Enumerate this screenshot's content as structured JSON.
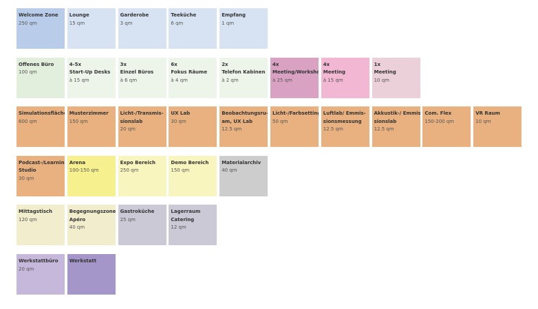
{
  "rows": [
    {
      "tiles": [
        {
          "title": [
            "Welcome Zone"
          ],
          "info": [
            "250 qm"
          ],
          "color": "#b9cdea"
        },
        {
          "title": [
            "Lounge"
          ],
          "info": [
            "15 qm"
          ],
          "color": "#d7e3f3"
        },
        {
          "title": [
            "Garderobe"
          ],
          "info": [
            "3 qm"
          ],
          "color": "#d7e3f3"
        },
        {
          "title": [
            "Teeküche"
          ],
          "info": [
            "6 qm"
          ],
          "color": "#d7e3f3"
        },
        {
          "title": [
            "Empfang"
          ],
          "info": [
            "1 qm"
          ],
          "color": "#d7e3f3"
        }
      ]
    },
    {
      "tiles": [
        {
          "title": [
            "Offenes Büro"
          ],
          "info": [
            "100 qm"
          ],
          "color": "#e2efdc"
        },
        {
          "title": [
            "4-5x",
            "Start-Up Desks"
          ],
          "info": [
            "à 15 qm"
          ],
          "color": "#edf5ea"
        },
        {
          "title": [
            "3x",
            "Einzel Büros"
          ],
          "info": [
            "à 6 qm"
          ],
          "color": "#edf5ea"
        },
        {
          "title": [
            "6x",
            "Fokus Räume"
          ],
          "info": [
            "à 4 qm"
          ],
          "color": "#edf5ea"
        },
        {
          "title": [
            "2x",
            "Telefon Kabinen"
          ],
          "info": [
            "à 2 qm"
          ],
          "color": "#edf5ea"
        },
        {
          "title": [
            "4x",
            "Meeting/Workshop"
          ],
          "info": [
            "à 25 qm"
          ],
          "color": "#d9a2c2"
        },
        {
          "title": [
            "4x",
            "Meeting"
          ],
          "info": [
            "à 15 qm"
          ],
          "color": "#f2b8d3"
        },
        {
          "title": [
            "1x",
            "Meeting"
          ],
          "info": [
            "10 qm"
          ],
          "color": "#ebd0da"
        }
      ]
    },
    {
      "tiles": [
        {
          "title": [
            "Simulationsfläche"
          ],
          "info": [
            "600 qm"
          ],
          "color": "#e8b17f"
        },
        {
          "title": [
            "Musterzimmer"
          ],
          "info": [
            "150 qm"
          ],
          "color": "#e8b17f"
        },
        {
          "title": [
            "Licht-/Transmis-",
            "sionslab"
          ],
          "info": [
            "20 qm"
          ],
          "color": "#e8b17f"
        },
        {
          "title": [
            "UX Lab"
          ],
          "info": [
            "30 qm"
          ],
          "color": "#e8b17f"
        },
        {
          "title": [
            "Beobachtungsru-",
            "am, UX Lab"
          ],
          "info": [
            "12.5 qm"
          ],
          "color": "#e8b17f"
        },
        {
          "title": [
            "Licht-/Farbsetting"
          ],
          "info": [
            "50 qm"
          ],
          "color": "#e8b17f"
        },
        {
          "title": [
            "Luftlab/ Emmis-",
            "sionsmessung"
          ],
          "info": [
            "12.5 qm"
          ],
          "color": "#e8b17f"
        },
        {
          "title": [
            "Akkustik-/ Emmis-",
            "sionslab"
          ],
          "info": [
            "12.5 qm"
          ],
          "color": "#e8b17f"
        },
        {
          "title": [
            "Com. Flex"
          ],
          "info": [
            "150-200 qm"
          ],
          "color": "#e8b17f"
        },
        {
          "title": [
            "VR Raum"
          ],
          "info": [
            "10 qm"
          ],
          "color": "#e8b17f"
        }
      ]
    },
    {
      "tiles": [
        {
          "title": [
            "Podcast-/Learning",
            "Studio"
          ],
          "info": [
            "30 qm"
          ],
          "color": "#e8b17f"
        },
        {
          "title": [
            "Arena"
          ],
          "info": [
            "100-150 qm"
          ],
          "color": "#f7f08e"
        },
        {
          "title": [
            "Expo Bereich"
          ],
          "info": [
            "250 qm"
          ],
          "color": "#f8f5be"
        },
        {
          "title": [
            "Demo Bereich"
          ],
          "info": [
            "150 qm"
          ],
          "color": "#f8f5be"
        },
        {
          "title": [
            "Materialarchiv"
          ],
          "info": [
            "40 qm"
          ],
          "color": "#cdcdcd"
        }
      ]
    },
    {
      "tiles": [
        {
          "title": [
            "Mittagstisch"
          ],
          "info": [
            "120 qm"
          ],
          "color": "#f2edcd"
        },
        {
          "title": [
            "Begegnungszone/",
            "Apéro"
          ],
          "info": [
            "40 qm"
          ],
          "color": "#f2edcd"
        },
        {
          "title": [
            "Gastroküche"
          ],
          "info": [
            "25 qm"
          ],
          "color": "#ccc9d7"
        },
        {
          "title": [
            "Lagerraum",
            "Catering"
          ],
          "info": [
            "12 qm"
          ],
          "color": "#ccc9d7"
        }
      ]
    },
    {
      "tiles": [
        {
          "title": [
            "Werkstattbüro"
          ],
          "info": [
            "20 qm"
          ],
          "color": "#c6b8db"
        },
        {
          "title": [
            "Werkstatt"
          ],
          "info": [],
          "color": "#a596c9"
        }
      ]
    }
  ]
}
